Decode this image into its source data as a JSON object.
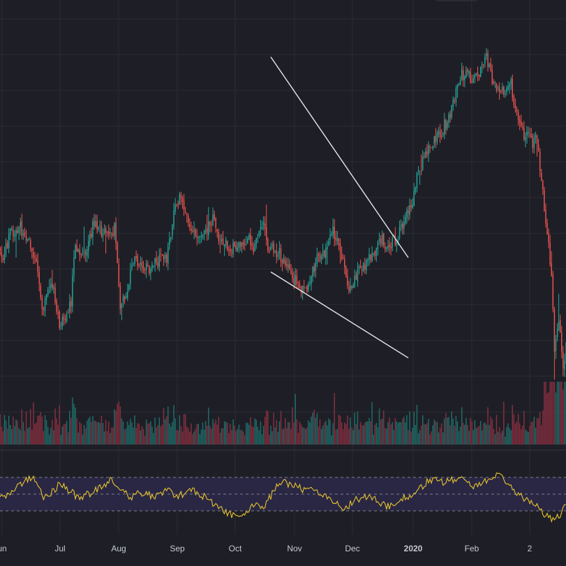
{
  "theme": {
    "background": "#1e1f26",
    "grid": "#2b2c33",
    "up": "#26a69a",
    "down": "#ef5350",
    "volume_up": "#1f6e6b",
    "volume_down": "#8a2f40",
    "rsi_line": "#e6c42e",
    "rsi_band": "#2a2744",
    "axis_text": "#c7c9d1",
    "trendline": "#e8e8e8"
  },
  "chart_data": {
    "type": "candlestick",
    "title": "",
    "xlabel": "",
    "ylabel": "",
    "x_tick_labels": [
      "un",
      "Jul",
      "Aug",
      "Sep",
      "Oct",
      "Nov",
      "Dec",
      "2020",
      "Feb",
      "2"
    ],
    "grid": true,
    "price_path_keypoints": [
      [
        0,
        560
      ],
      [
        5,
        520
      ],
      [
        10,
        590
      ],
      [
        16,
        605
      ],
      [
        22,
        580
      ],
      [
        28,
        500
      ],
      [
        33,
        360
      ],
      [
        34,
        420
      ],
      [
        40,
        440
      ],
      [
        44,
        320
      ],
      [
        52,
        400
      ],
      [
        55,
        560
      ],
      [
        60,
        520
      ],
      [
        68,
        620
      ],
      [
        74,
        580
      ],
      [
        82,
        600
      ],
      [
        86,
        390
      ],
      [
        90,
        420
      ],
      [
        96,
        530
      ],
      [
        102,
        480
      ],
      [
        108,
        500
      ],
      [
        118,
        520
      ],
      [
        124,
        660
      ],
      [
        128,
        690
      ],
      [
        135,
        600
      ],
      [
        142,
        580
      ],
      [
        150,
        630
      ],
      [
        156,
        560
      ],
      [
        166,
        540
      ],
      [
        174,
        580
      ],
      [
        178,
        540
      ],
      [
        180,
        560
      ],
      [
        184,
        620
      ],
      [
        188,
        545
      ],
      [
        196,
        530
      ],
      [
        204,
        470
      ],
      [
        208,
        455
      ],
      [
        214,
        420
      ],
      [
        222,
        520
      ],
      [
        224,
        500
      ],
      [
        232,
        600
      ],
      [
        236,
        570
      ],
      [
        240,
        500
      ],
      [
        244,
        430
      ],
      [
        250,
        480
      ],
      [
        260,
        530
      ],
      [
        266,
        570
      ],
      [
        272,
        550
      ],
      [
        276,
        570
      ],
      [
        282,
        620
      ],
      [
        288,
        680
      ],
      [
        292,
        760
      ],
      [
        296,
        800
      ],
      [
        300,
        820
      ],
      [
        304,
        850
      ],
      [
        312,
        900
      ],
      [
        322,
        1030
      ],
      [
        334,
        1020
      ],
      [
        338,
        1090
      ],
      [
        346,
        980
      ],
      [
        356,
        1000
      ],
      [
        362,
        880
      ],
      [
        372,
        840
      ],
      [
        374,
        850
      ],
      [
        378,
        700
      ],
      [
        384,
        470
      ],
      [
        386,
        260
      ],
      [
        389,
        340
      ],
      [
        392,
        200
      ],
      [
        394,
        290
      ]
    ],
    "volume": "daily volume bars, green on up days, red on down days",
    "rsi": {
      "upper_level": 70,
      "middle_level": 50,
      "lower_level": 30,
      "keypoints": [
        [
          0,
          52
        ],
        [
          6,
          45
        ],
        [
          14,
          56
        ],
        [
          22,
          68
        ],
        [
          26,
          72
        ],
        [
          28,
          60
        ],
        [
          34,
          44
        ],
        [
          44,
          62
        ],
        [
          50,
          55
        ],
        [
          58,
          45
        ],
        [
          66,
          52
        ],
        [
          74,
          60
        ],
        [
          80,
          68
        ],
        [
          86,
          56
        ],
        [
          94,
          46
        ],
        [
          100,
          52
        ],
        [
          110,
          46
        ],
        [
          118,
          54
        ],
        [
          126,
          48
        ],
        [
          136,
          56
        ],
        [
          146,
          44
        ],
        [
          156,
          32
        ],
        [
          164,
          24
        ],
        [
          172,
          28
        ],
        [
          180,
          38
        ],
        [
          186,
          36
        ],
        [
          194,
          60
        ],
        [
          200,
          64
        ],
        [
          212,
          56
        ],
        [
          220,
          54
        ],
        [
          228,
          48
        ],
        [
          234,
          42
        ],
        [
          240,
          28
        ],
        [
          246,
          40
        ],
        [
          252,
          46
        ],
        [
          262,
          44
        ],
        [
          272,
          34
        ],
        [
          282,
          46
        ],
        [
          290,
          52
        ],
        [
          300,
          68
        ],
        [
          310,
          64
        ],
        [
          320,
          70
        ],
        [
          330,
          60
        ],
        [
          340,
          68
        ],
        [
          348,
          72
        ],
        [
          354,
          64
        ],
        [
          362,
          48
        ],
        [
          372,
          40
        ],
        [
          378,
          28
        ],
        [
          384,
          20
        ],
        [
          390,
          26
        ],
        [
          394,
          38
        ]
      ]
    },
    "trendlines": [
      {
        "name": "falling-wedge-upper",
        "from": [
          190,
          1080
        ],
        "to": [
          285,
          520
        ]
      },
      {
        "name": "falling-wedge-lower",
        "from": [
          190,
          480
        ],
        "to": [
          285,
          240
        ]
      }
    ]
  }
}
